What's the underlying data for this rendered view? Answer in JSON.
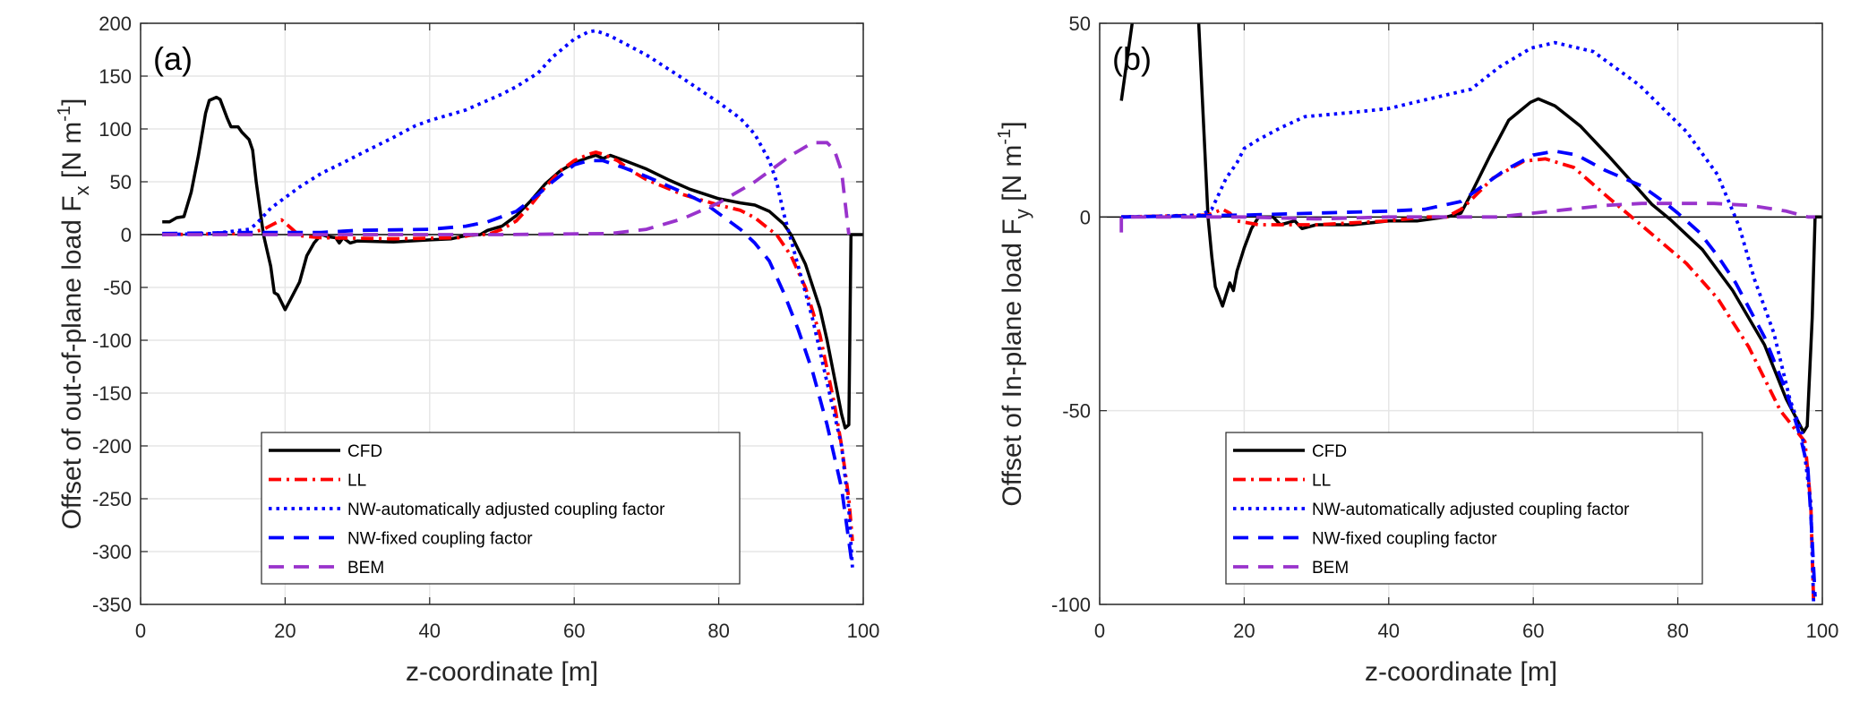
{
  "chart_data": [
    {
      "type": "line",
      "panel_label": "(a)",
      "xlabel": "z-coordinate [m]",
      "ylabel": {
        "main": "Offset of out-of-plane load F",
        "sub": "x",
        "unit_open": " [N m",
        "sup": "-1",
        "unit_close": "]"
      },
      "xlim": [
        0,
        100
      ],
      "ylim": [
        -350,
        200
      ],
      "xticks": [
        0,
        20,
        40,
        60,
        80,
        100
      ],
      "yticks": [
        -350,
        -300,
        -250,
        -200,
        -150,
        -100,
        -50,
        0,
        50,
        100,
        150,
        200
      ],
      "grid": true,
      "legend_position": "bottom-center",
      "series": [
        {
          "name": "CFD",
          "color": "#000000",
          "style": "solid",
          "x": [
            3,
            4,
            5,
            6,
            7,
            8,
            9,
            9.5,
            10.5,
            11,
            12,
            12.5,
            13.5,
            14,
            15,
            15.5,
            16,
            17,
            18,
            18.5,
            19,
            20,
            21,
            22,
            23,
            24,
            25,
            26,
            27,
            27.5,
            28,
            29,
            30,
            35,
            40,
            43,
            45,
            47,
            48,
            50,
            52,
            54,
            56,
            58,
            60,
            62,
            63,
            64,
            65,
            67,
            70,
            73,
            76,
            80,
            83,
            85,
            87,
            89,
            90,
            92,
            94,
            95,
            96,
            97,
            97.5,
            98,
            98.3,
            100
          ],
          "y": [
            12,
            12,
            16,
            17,
            40,
            75,
            115,
            127,
            130,
            128,
            110,
            102,
            102,
            97,
            90,
            80,
            50,
            0,
            -30,
            -55,
            -57,
            -71,
            -58,
            -45,
            -20,
            -8,
            0,
            -2,
            -3,
            -8,
            -3,
            -8,
            -6,
            -7,
            -5,
            -4,
            -1,
            0,
            4,
            8,
            18,
            32,
            48,
            60,
            68,
            73,
            75,
            72,
            75,
            70,
            62,
            52,
            43,
            34,
            30,
            28,
            22,
            10,
            0,
            -28,
            -70,
            -100,
            -135,
            -170,
            -183,
            -180,
            0,
            0
          ]
        },
        {
          "name": "LL",
          "color": "#ff0000",
          "style": "dashdot",
          "x": [
            3,
            15,
            17,
            19.5,
            21,
            22,
            25,
            35,
            44,
            46,
            48,
            50,
            52,
            54,
            56,
            58,
            60,
            62,
            63,
            64,
            66,
            68,
            70,
            75,
            80,
            83,
            85,
            87,
            88,
            90,
            92,
            94,
            96,
            97,
            98,
            98.5
          ],
          "y": [
            0,
            1,
            5,
            14,
            5,
            -1,
            -3,
            -4,
            -3,
            0,
            0,
            5,
            13,
            28,
            45,
            60,
            70,
            76,
            78,
            76,
            70,
            60,
            52,
            38,
            28,
            23,
            16,
            5,
            0,
            -20,
            -50,
            -95,
            -160,
            -200,
            -250,
            -290
          ]
        },
        {
          "name": "NW-automatically adjusted coupling factor",
          "color": "#0000ff",
          "style": "dotted",
          "x": [
            3,
            10,
            15,
            16,
            18,
            20,
            22,
            25,
            28,
            30,
            35,
            38,
            40,
            45,
            50,
            52,
            55,
            57,
            60,
            62,
            63,
            65,
            70,
            75,
            80,
            83,
            85,
            87,
            88,
            89,
            90,
            91,
            93,
            95,
            97,
            98,
            98.5
          ],
          "y": [
            0,
            1,
            5,
            10,
            25,
            35,
            45,
            58,
            68,
            75,
            92,
            103,
            108,
            118,
            133,
            140,
            153,
            168,
            185,
            192,
            193,
            188,
            170,
            148,
            125,
            110,
            95,
            70,
            50,
            20,
            -5,
            -30,
            -80,
            -140,
            -200,
            -260,
            -315
          ]
        },
        {
          "name": "NW-fixed coupling factor",
          "color": "#0000ff",
          "style": "dashed",
          "x": [
            3,
            15,
            20,
            25,
            30,
            40,
            45,
            48,
            52,
            55,
            57,
            60,
            62,
            64,
            67,
            70,
            75,
            78,
            80,
            83,
            85,
            87,
            89,
            91,
            93,
            95,
            97,
            98,
            98.5
          ],
          "y": [
            1,
            2,
            2,
            2,
            4,
            5,
            8,
            12,
            22,
            38,
            50,
            66,
            70,
            70,
            63,
            55,
            40,
            30,
            20,
            5,
            -8,
            -25,
            -55,
            -90,
            -130,
            -180,
            -240,
            -290,
            -315
          ]
        },
        {
          "name": "BEM",
          "color": "#9933cc",
          "style": "dashed",
          "x": [
            3,
            50,
            65,
            70,
            75,
            80,
            85,
            88,
            90,
            93,
            95,
            96,
            97,
            97.5,
            98
          ],
          "y": [
            0,
            0,
            1,
            5,
            15,
            30,
            50,
            65,
            75,
            87,
            87,
            80,
            60,
            30,
            0
          ]
        }
      ]
    },
    {
      "type": "line",
      "panel_label": "(b)",
      "xlabel": "z-coordinate [m]",
      "ylabel": {
        "main": "Offset of In-plane load F",
        "sub": "y",
        "unit_open": " [N m",
        "sup": "-1",
        "unit_close": "]"
      },
      "xlim": [
        0,
        100
      ],
      "ylim": [
        -100,
        50
      ],
      "xticks": [
        0,
        20,
        40,
        60,
        80,
        100
      ],
      "yticks": [
        -100,
        -50,
        0,
        50
      ],
      "grid": true,
      "legend_position": "bottom-center",
      "series": [
        {
          "name": "CFD",
          "color": "#000000",
          "style": "solid",
          "x": [
            3,
            4.5,
            6,
            9,
            12,
            13.7,
            15,
            15.5,
            16,
            17,
            17.5,
            18,
            18.5,
            19,
            20,
            21,
            22,
            24,
            25,
            27,
            28,
            30,
            35,
            40,
            44,
            48,
            50,
            51.4,
            54,
            56.6,
            59.6,
            60.7,
            63,
            66.5,
            70.4,
            76.4,
            79,
            83.4,
            87.6,
            92,
            95,
            97.4,
            97.9,
            98.6,
            99,
            100
          ],
          "y": [
            30,
            50,
            70,
            80,
            70,
            50,
            0,
            -10,
            -18,
            -23,
            -20,
            -17,
            -19,
            -14,
            -8,
            -3,
            0,
            0,
            -2,
            -1,
            -3,
            -2,
            -2,
            -1,
            -1,
            0,
            1,
            6,
            15.8,
            25,
            29.6,
            30.5,
            28.7,
            23.5,
            15.8,
            3.3,
            -0.7,
            -8.4,
            -19,
            -33,
            -47,
            -55.5,
            -54,
            -26,
            0,
            0
          ]
        },
        {
          "name": "LL",
          "color": "#ff0000",
          "style": "dashdot",
          "x": [
            3,
            15,
            17,
            18,
            19,
            22,
            30,
            40,
            45,
            48,
            50,
            51,
            54.4,
            58.7,
            61.7,
            65.6,
            70.4,
            74.7,
            81.2,
            85.5,
            89.8,
            94.2,
            97.6,
            98.4,
            98.8
          ],
          "y": [
            0,
            0.5,
            2,
            1,
            -1,
            -2,
            -2,
            -1,
            0,
            0,
            2,
            3.7,
            10,
            14.4,
            15,
            12.8,
            5,
            -1.7,
            -12,
            -21,
            -33.5,
            -50,
            -58,
            -74,
            -100
          ]
        },
        {
          "name": "NW-automatically adjusted coupling factor",
          "color": "#0000ff",
          "style": "dotted",
          "x": [
            3,
            14,
            15.5,
            16.5,
            17.5,
            19,
            20,
            22,
            25,
            28.4,
            35,
            40,
            44.5,
            51.4,
            55.3,
            59.7,
            63,
            68.3,
            74.7,
            81.2,
            85.5,
            88.5,
            90.6,
            93.3,
            95.5,
            97.2,
            98.4,
            98.8
          ],
          "y": [
            0,
            0.5,
            2,
            6,
            10,
            14,
            17.7,
            20,
            23,
            25.9,
            27,
            28,
            30,
            33,
            38.7,
            43.6,
            45,
            42.7,
            34,
            22,
            10.9,
            -2.5,
            -16,
            -30,
            -47,
            -56,
            -74,
            -100
          ]
        },
        {
          "name": "NW-fixed coupling factor",
          "color": "#0000ff",
          "style": "dashed",
          "x": [
            3,
            20,
            30,
            40,
            45,
            50,
            53,
            56,
            60,
            63,
            66,
            70,
            75,
            78,
            80,
            83,
            85.5,
            88,
            92,
            95,
            97,
            98,
            98.5,
            99
          ],
          "y": [
            0,
            0.5,
            1,
            1.5,
            2,
            4,
            8,
            12,
            16,
            17,
            16,
            12,
            8,
            4,
            1,
            -4,
            -10,
            -17,
            -31,
            -45,
            -57,
            -65,
            -80,
            -98
          ]
        },
        {
          "name": "BEM",
          "color": "#9933cc",
          "style": "dashed",
          "x": [
            3,
            3,
            10,
            20,
            30,
            40,
            50,
            55,
            60,
            65,
            70,
            75,
            80,
            85,
            90,
            95,
            98,
            99
          ],
          "y": [
            -4,
            0,
            0,
            0,
            -0.5,
            0,
            0,
            0,
            1,
            2,
            3,
            3.5,
            3.5,
            3.5,
            3,
            1.5,
            0,
            0
          ]
        }
      ]
    }
  ]
}
